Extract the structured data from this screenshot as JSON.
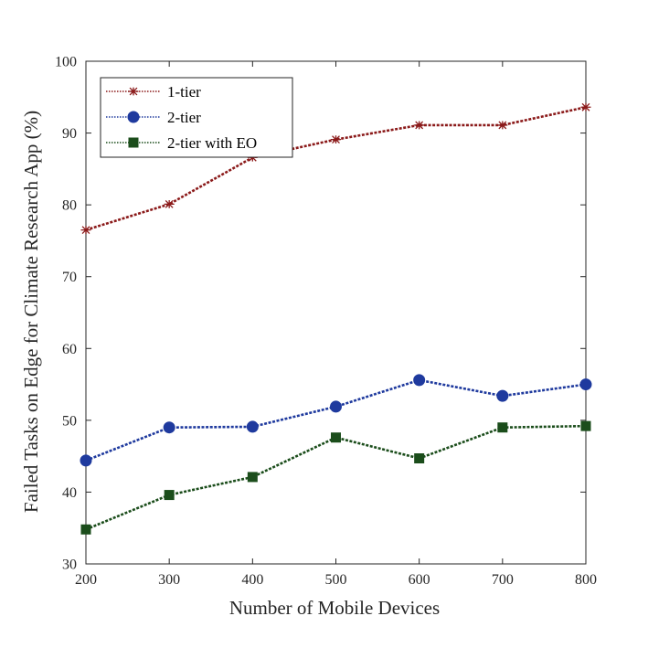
{
  "chart_data": {
    "type": "line",
    "xlabel": "Number of Mobile Devices",
    "ylabel": "Failed Tasks on Edge for Climate Research App (%)",
    "x": [
      200,
      300,
      400,
      500,
      600,
      700,
      800
    ],
    "xlim": [
      200,
      800
    ],
    "ylim": [
      30,
      100
    ],
    "xticks": [
      200,
      300,
      400,
      500,
      600,
      700,
      800
    ],
    "yticks": [
      30,
      40,
      50,
      60,
      70,
      80,
      90,
      100
    ],
    "grid": false,
    "legend_position": "top-left",
    "series": [
      {
        "name": "1-tier",
        "marker": "asterisk",
        "color": "#8B1A1A",
        "values": [
          76.5,
          80.1,
          86.6,
          89.1,
          91.1,
          91.1,
          93.6
        ]
      },
      {
        "name": "2-tier",
        "marker": "circle",
        "color": "#1F3A9E",
        "values": [
          44.4,
          49.0,
          49.1,
          51.9,
          55.6,
          53.4,
          55.0
        ]
      },
      {
        "name": "2-tier with EO",
        "marker": "square",
        "color": "#1B4D1B",
        "values": [
          34.8,
          39.6,
          42.1,
          47.6,
          44.7,
          49.0,
          49.2
        ]
      }
    ]
  }
}
